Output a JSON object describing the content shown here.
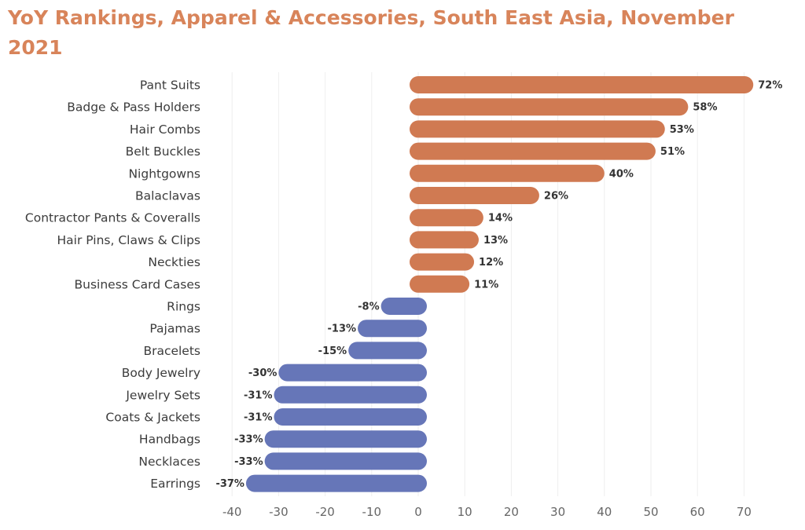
{
  "chart_data": {
    "type": "bar",
    "orientation": "horizontal",
    "title": "YoY Rankings, Apparel & Accessories, South East Asia, November 2021",
    "xlim": [
      -40,
      70
    ],
    "xticks": [
      -40,
      -30,
      -20,
      -10,
      0,
      10,
      20,
      30,
      40,
      50,
      60,
      70
    ],
    "grid": true,
    "value_suffix": "%",
    "categories": [
      "Pant Suits",
      "Badge & Pass Holders",
      "Hair Combs",
      "Belt Buckles",
      "Nightgowns",
      "Balaclavas",
      "Contractor Pants & Coveralls",
      "Hair Pins, Claws & Clips",
      "Neckties",
      "Business Card Cases",
      "Rings",
      "Pajamas",
      "Bracelets",
      "Body Jewelry",
      "Jewelry Sets",
      "Coats & Jackets",
      "Handbags",
      "Necklaces",
      "Earrings"
    ],
    "values": [
      72,
      58,
      53,
      51,
      40,
      26,
      14,
      13,
      12,
      11,
      -8,
      -13,
      -15,
      -30,
      -31,
      -31,
      -33,
      -33,
      -37
    ],
    "colors": {
      "positive": "#D07A52",
      "negative": "#6676B8",
      "title": "#D8845A"
    }
  }
}
